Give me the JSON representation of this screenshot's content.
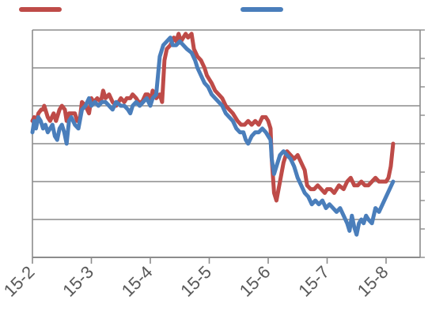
{
  "chart_data": {
    "type": "line",
    "title": "",
    "xlabel": "",
    "ylabel": "",
    "x_tick_labels": [
      "15-2",
      "15-3",
      "15-4",
      "15-5",
      "15-6",
      "15-7",
      "15-8"
    ],
    "grid": true,
    "legend": "top",
    "series": [
      {
        "color": "#be4b48",
        "points": [
          [
            0.0,
            6.6
          ],
          [
            0.03,
            6.7
          ],
          [
            0.06,
            6.5
          ],
          [
            0.1,
            6.8
          ],
          [
            0.15,
            6.9
          ],
          [
            0.18,
            6.9
          ],
          [
            0.2,
            7.0
          ],
          [
            0.22,
            6.9
          ],
          [
            0.26,
            6.7
          ],
          [
            0.3,
            6.6
          ],
          [
            0.36,
            6.8
          ],
          [
            0.4,
            6.6
          ],
          [
            0.46,
            6.9
          ],
          [
            0.5,
            7.0
          ],
          [
            0.55,
            6.9
          ],
          [
            0.58,
            6.6
          ],
          [
            0.62,
            6.8
          ],
          [
            0.66,
            6.8
          ],
          [
            0.72,
            6.8
          ],
          [
            0.76,
            6.6
          ],
          [
            0.8,
            6.6
          ],
          [
            0.84,
            7.1
          ],
          [
            0.9,
            7.0
          ],
          [
            0.96,
            6.8
          ],
          [
            1.0,
            7.2
          ],
          [
            1.04,
            7.1
          ],
          [
            1.1,
            7.2
          ],
          [
            1.16,
            7.1
          ],
          [
            1.2,
            7.4
          ],
          [
            1.24,
            7.2
          ],
          [
            1.3,
            7.3
          ],
          [
            1.36,
            7.1
          ],
          [
            1.42,
            7.0
          ],
          [
            1.5,
            7.2
          ],
          [
            1.56,
            7.1
          ],
          [
            1.6,
            7.2
          ],
          [
            1.66,
            7.2
          ],
          [
            1.7,
            7.3
          ],
          [
            1.76,
            7.2
          ],
          [
            1.8,
            7.1
          ],
          [
            1.86,
            7.1
          ],
          [
            1.92,
            7.3
          ],
          [
            1.96,
            7.3
          ],
          [
            2.0,
            7.1
          ],
          [
            2.04,
            7.4
          ],
          [
            2.1,
            7.2
          ],
          [
            2.16,
            7.3
          ],
          [
            2.2,
            7.1
          ],
          [
            2.24,
            8.2
          ],
          [
            2.28,
            8.5
          ],
          [
            2.34,
            8.6
          ],
          [
            2.4,
            8.8
          ],
          [
            2.44,
            8.7
          ],
          [
            2.48,
            8.9
          ],
          [
            2.52,
            8.7
          ],
          [
            2.56,
            8.8
          ],
          [
            2.6,
            8.9
          ],
          [
            2.64,
            8.8
          ],
          [
            2.7,
            8.9
          ],
          [
            2.74,
            8.5
          ],
          [
            2.8,
            8.3
          ],
          [
            2.86,
            8.2
          ],
          [
            2.92,
            8.0
          ],
          [
            2.96,
            7.8
          ],
          [
            3.0,
            7.7
          ],
          [
            3.04,
            7.6
          ],
          [
            3.1,
            7.4
          ],
          [
            3.16,
            7.3
          ],
          [
            3.22,
            7.2
          ],
          [
            3.28,
            7.0
          ],
          [
            3.34,
            6.9
          ],
          [
            3.4,
            6.8
          ],
          [
            3.48,
            6.6
          ],
          [
            3.54,
            6.5
          ],
          [
            3.6,
            6.5
          ],
          [
            3.66,
            6.6
          ],
          [
            3.72,
            6.5
          ],
          [
            3.78,
            6.6
          ],
          [
            3.84,
            6.5
          ],
          [
            3.9,
            6.7
          ],
          [
            3.96,
            6.7
          ],
          [
            4.0,
            6.6
          ],
          [
            4.04,
            6.4
          ],
          [
            4.06,
            5.6
          ],
          [
            4.1,
            4.7
          ],
          [
            4.14,
            4.5
          ],
          [
            4.2,
            5.0
          ],
          [
            4.26,
            5.5
          ],
          [
            4.32,
            5.8
          ],
          [
            4.38,
            5.7
          ],
          [
            4.44,
            5.6
          ],
          [
            4.5,
            5.7
          ],
          [
            4.56,
            5.5
          ],
          [
            4.62,
            5.3
          ],
          [
            4.66,
            4.9
          ],
          [
            4.72,
            4.8
          ],
          [
            4.78,
            4.8
          ],
          [
            4.84,
            4.9
          ],
          [
            4.9,
            4.8
          ],
          [
            4.96,
            4.7
          ],
          [
            5.0,
            4.8
          ],
          [
            5.06,
            4.8
          ],
          [
            5.12,
            4.7
          ],
          [
            5.2,
            4.9
          ],
          [
            5.28,
            4.8
          ],
          [
            5.34,
            5.0
          ],
          [
            5.4,
            5.1
          ],
          [
            5.46,
            4.9
          ],
          [
            5.52,
            4.9
          ],
          [
            5.58,
            5.0
          ],
          [
            5.64,
            4.9
          ],
          [
            5.7,
            4.9
          ],
          [
            5.76,
            5.0
          ],
          [
            5.82,
            5.1
          ],
          [
            5.88,
            5.0
          ],
          [
            5.94,
            5.0
          ],
          [
            6.0,
            5.0
          ],
          [
            6.04,
            5.1
          ],
          [
            6.08,
            5.4
          ],
          [
            6.12,
            6.0
          ]
        ]
      },
      {
        "color": "#4a7ebb",
        "points": [
          [
            0.0,
            6.3
          ],
          [
            0.03,
            6.6
          ],
          [
            0.06,
            6.4
          ],
          [
            0.1,
            6.7
          ],
          [
            0.14,
            6.6
          ],
          [
            0.18,
            6.4
          ],
          [
            0.22,
            6.5
          ],
          [
            0.26,
            6.3
          ],
          [
            0.3,
            6.4
          ],
          [
            0.34,
            6.5
          ],
          [
            0.38,
            6.2
          ],
          [
            0.42,
            6.1
          ],
          [
            0.46,
            6.4
          ],
          [
            0.5,
            6.5
          ],
          [
            0.54,
            6.3
          ],
          [
            0.58,
            6.0
          ],
          [
            0.62,
            6.6
          ],
          [
            0.66,
            6.7
          ],
          [
            0.72,
            6.5
          ],
          [
            0.78,
            6.4
          ],
          [
            0.84,
            6.9
          ],
          [
            0.9,
            7.0
          ],
          [
            0.96,
            7.2
          ],
          [
            1.0,
            7.0
          ],
          [
            1.06,
            7.1
          ],
          [
            1.12,
            7.0
          ],
          [
            1.18,
            7.1
          ],
          [
            1.24,
            7.1
          ],
          [
            1.3,
            7.0
          ],
          [
            1.36,
            6.9
          ],
          [
            1.42,
            7.1
          ],
          [
            1.5,
            7.0
          ],
          [
            1.56,
            7.0
          ],
          [
            1.62,
            6.9
          ],
          [
            1.66,
            6.8
          ],
          [
            1.7,
            7.0
          ],
          [
            1.76,
            7.1
          ],
          [
            1.82,
            7.0
          ],
          [
            1.88,
            7.1
          ],
          [
            1.94,
            7.2
          ],
          [
            2.0,
            7.0
          ],
          [
            2.04,
            7.2
          ],
          [
            2.1,
            7.3
          ],
          [
            2.16,
            8.3
          ],
          [
            2.22,
            8.6
          ],
          [
            2.28,
            8.7
          ],
          [
            2.34,
            8.8
          ],
          [
            2.38,
            8.6
          ],
          [
            2.44,
            8.6
          ],
          [
            2.5,
            8.7
          ],
          [
            2.56,
            8.6
          ],
          [
            2.62,
            8.5
          ],
          [
            2.7,
            8.4
          ],
          [
            2.76,
            8.2
          ],
          [
            2.8,
            8.0
          ],
          [
            2.86,
            7.8
          ],
          [
            2.92,
            7.6
          ],
          [
            2.98,
            7.5
          ],
          [
            3.04,
            7.3
          ],
          [
            3.1,
            7.2
          ],
          [
            3.16,
            7.1
          ],
          [
            3.22,
            7.0
          ],
          [
            3.28,
            6.8
          ],
          [
            3.34,
            6.7
          ],
          [
            3.4,
            6.6
          ],
          [
            3.46,
            6.4
          ],
          [
            3.52,
            6.3
          ],
          [
            3.58,
            6.3
          ],
          [
            3.62,
            6.1
          ],
          [
            3.66,
            6.0
          ],
          [
            3.72,
            6.2
          ],
          [
            3.78,
            6.3
          ],
          [
            3.84,
            6.3
          ],
          [
            3.9,
            6.4
          ],
          [
            3.96,
            6.3
          ],
          [
            4.0,
            6.2
          ],
          [
            4.04,
            6.1
          ],
          [
            4.06,
            5.6
          ],
          [
            4.1,
            5.2
          ],
          [
            4.14,
            5.4
          ],
          [
            4.2,
            5.7
          ],
          [
            4.26,
            5.8
          ],
          [
            4.32,
            5.7
          ],
          [
            4.38,
            5.6
          ],
          [
            4.44,
            5.4
          ],
          [
            4.5,
            5.1
          ],
          [
            4.56,
            4.9
          ],
          [
            4.62,
            4.7
          ],
          [
            4.68,
            4.6
          ],
          [
            4.74,
            4.4
          ],
          [
            4.8,
            4.5
          ],
          [
            4.86,
            4.4
          ],
          [
            4.92,
            4.5
          ],
          [
            4.98,
            4.3
          ],
          [
            5.04,
            4.4
          ],
          [
            5.1,
            4.3
          ],
          [
            5.16,
            4.2
          ],
          [
            5.22,
            4.3
          ],
          [
            5.28,
            4.1
          ],
          [
            5.34,
            3.9
          ],
          [
            5.38,
            3.7
          ],
          [
            5.42,
            4.1
          ],
          [
            5.46,
            3.8
          ],
          [
            5.5,
            3.6
          ],
          [
            5.54,
            3.9
          ],
          [
            5.58,
            4.0
          ],
          [
            5.62,
            3.9
          ],
          [
            5.66,
            4.1
          ],
          [
            5.7,
            4.0
          ],
          [
            5.76,
            3.9
          ],
          [
            5.82,
            4.3
          ],
          [
            5.88,
            4.2
          ],
          [
            5.94,
            4.4
          ],
          [
            6.0,
            4.6
          ],
          [
            6.06,
            4.8
          ],
          [
            6.12,
            5.0
          ]
        ]
      }
    ]
  }
}
